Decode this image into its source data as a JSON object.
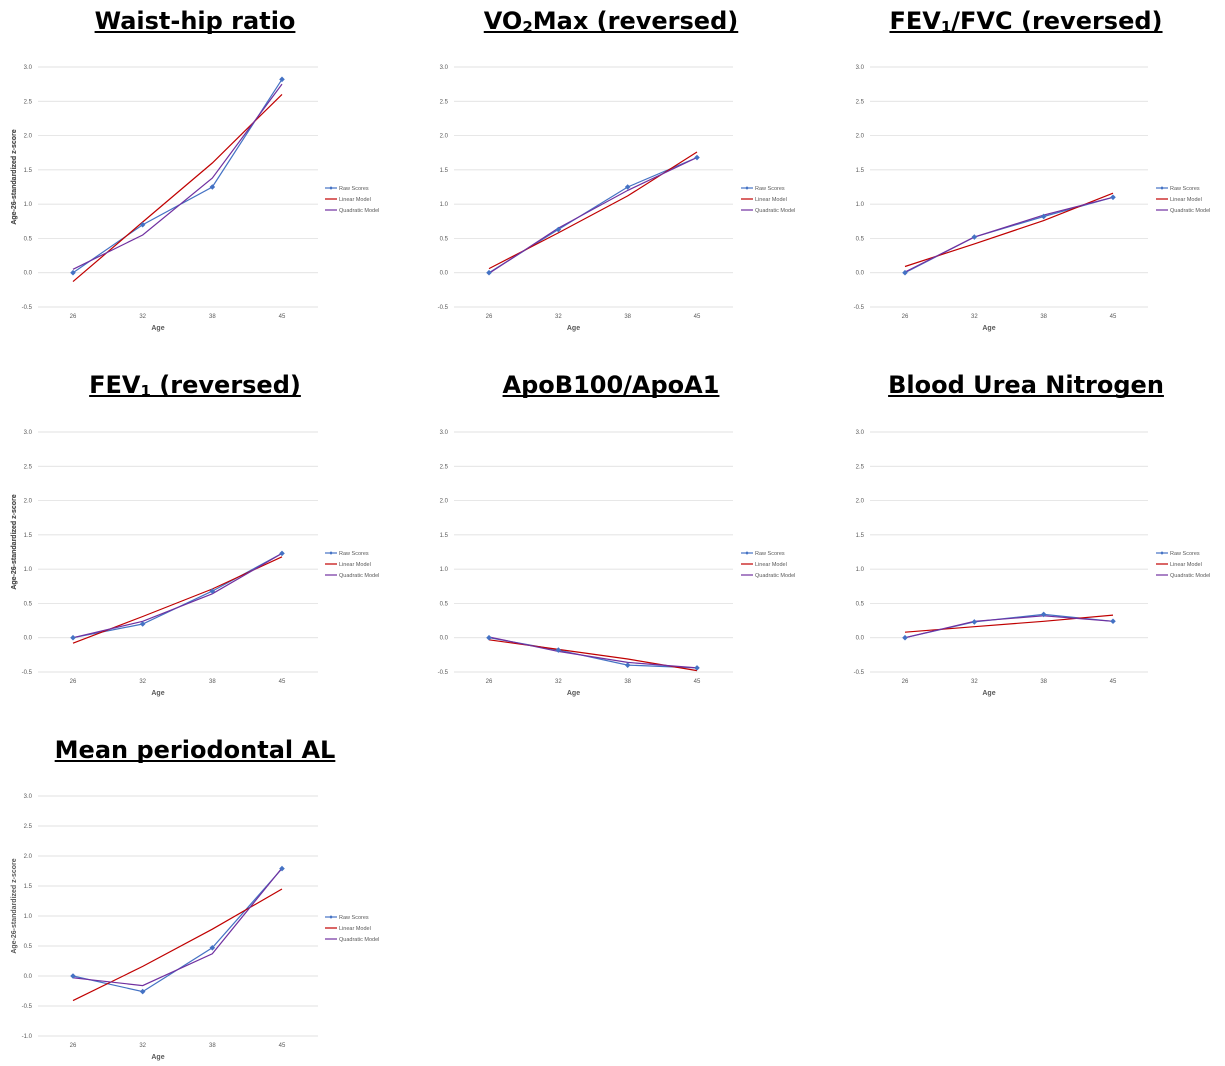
{
  "colors": {
    "raw": "#4472C4",
    "linear": "#C00000",
    "quadratic": "#7030A0",
    "grid": "#D9D9D9",
    "text": "#595959"
  },
  "legend_labels": [
    "Raw Scores",
    "Linear Model",
    "Quadratic Model"
  ],
  "chart_data": [
    {
      "type": "line",
      "title": "Waist-hip ratio",
      "title_parts": [
        {
          "t": "Waist-hip ratio"
        }
      ],
      "xlabel": "Age",
      "ylabel": "Age-26-standardized z-score",
      "categories": [
        "26",
        "32",
        "38",
        "45"
      ],
      "y_ticks": [
        "-0.5",
        "0.0",
        "0.5",
        "1.0",
        "1.5",
        "2.0",
        "2.5",
        "3.0"
      ],
      "ylim": [
        -0.5,
        3.0
      ],
      "series": [
        {
          "name": "Raw Scores",
          "values": [
            0.0,
            0.7,
            1.25,
            2.82
          ]
        },
        {
          "name": "Linear Model",
          "values": [
            -0.13,
            0.74,
            1.6,
            2.6
          ]
        },
        {
          "name": "Quadratic Model",
          "values": [
            0.05,
            0.55,
            1.38,
            2.75
          ]
        }
      ]
    },
    {
      "type": "line",
      "title": "VO2Max (reversed)",
      "title_parts": [
        {
          "t": "VO"
        },
        {
          "t": "2",
          "sub": true
        },
        {
          "t": "Max (reversed)"
        }
      ],
      "xlabel": "Age",
      "ylabel": "Age-26-standardized z-score",
      "categories": [
        "26",
        "32",
        "38",
        "45"
      ],
      "y_ticks": [
        "-0.5",
        "0.0",
        "0.5",
        "1.0",
        "1.5",
        "2.0",
        "2.5",
        "3.0"
      ],
      "ylim": [
        -0.5,
        3.0
      ],
      "series": [
        {
          "name": "Raw Scores",
          "values": [
            0.0,
            0.63,
            1.25,
            1.68
          ]
        },
        {
          "name": "Linear Model",
          "values": [
            0.06,
            0.58,
            1.12,
            1.76
          ]
        },
        {
          "name": "Quadratic Model",
          "values": [
            -0.01,
            0.65,
            1.2,
            1.68
          ]
        }
      ]
    },
    {
      "type": "line",
      "title": "FEV1/FVC (reversed)",
      "title_parts": [
        {
          "t": "FEV"
        },
        {
          "t": "1",
          "sub": true
        },
        {
          "t": "/FVC (reversed)"
        }
      ],
      "xlabel": "Age",
      "ylabel": "Age-26-standardized z-score",
      "categories": [
        "26",
        "32",
        "38",
        "45"
      ],
      "y_ticks": [
        "-0.5",
        "0.0",
        "0.5",
        "1.0",
        "1.5",
        "2.0",
        "2.5",
        "3.0"
      ],
      "ylim": [
        -0.5,
        3.0
      ],
      "series": [
        {
          "name": "Raw Scores",
          "values": [
            0.0,
            0.52,
            0.82,
            1.1
          ]
        },
        {
          "name": "Linear Model",
          "values": [
            0.09,
            0.42,
            0.76,
            1.16
          ]
        },
        {
          "name": "Quadratic Model",
          "values": [
            0.01,
            0.52,
            0.84,
            1.1
          ]
        }
      ]
    },
    {
      "type": "line",
      "title": "FEV1 (reversed)",
      "title_parts": [
        {
          "t": "FEV"
        },
        {
          "t": "1",
          "sub": true
        },
        {
          "t": " (reversed)"
        }
      ],
      "xlabel": "Age",
      "ylabel": "Age-26-standardized z-score",
      "categories": [
        "26",
        "32",
        "38",
        "45"
      ],
      "y_ticks": [
        "-0.5",
        "0.0",
        "0.5",
        "1.0",
        "1.5",
        "2.0",
        "2.5",
        "3.0"
      ],
      "ylim": [
        -0.5,
        3.0
      ],
      "series": [
        {
          "name": "Raw Scores",
          "values": [
            0.0,
            0.2,
            0.68,
            1.23
          ]
        },
        {
          "name": "Linear Model",
          "values": [
            -0.08,
            0.31,
            0.71,
            1.18
          ]
        },
        {
          "name": "Quadratic Model",
          "values": [
            0.0,
            0.24,
            0.64,
            1.23
          ]
        }
      ]
    },
    {
      "type": "line",
      "title": "ApoB100/ApoA1",
      "title_parts": [
        {
          "t": "ApoB100/ApoA1"
        }
      ],
      "xlabel": "Age",
      "ylabel": "Age-26-standardized z-score",
      "categories": [
        "26",
        "32",
        "38",
        "45"
      ],
      "y_ticks": [
        "-0.5",
        "0.0",
        "0.5",
        "1.0",
        "1.5",
        "2.0",
        "2.5",
        "3.0"
      ],
      "ylim": [
        -0.5,
        3.0
      ],
      "series": [
        {
          "name": "Raw Scores",
          "values": [
            0.0,
            -0.18,
            -0.4,
            -0.44
          ]
        },
        {
          "name": "Linear Model",
          "values": [
            -0.03,
            -0.17,
            -0.31,
            -0.48
          ]
        },
        {
          "name": "Quadratic Model",
          "values": [
            0.01,
            -0.2,
            -0.36,
            -0.44
          ]
        }
      ]
    },
    {
      "type": "line",
      "title": "Blood Urea Nitrogen",
      "title_parts": [
        {
          "t": "Blood Urea Nitrogen"
        }
      ],
      "xlabel": "Age",
      "ylabel": "Age-26-standardized z-score",
      "categories": [
        "26",
        "32",
        "38",
        "45"
      ],
      "y_ticks": [
        "-0.5",
        "0.0",
        "0.5",
        "1.0",
        "1.5",
        "2.0",
        "2.5",
        "3.0"
      ],
      "ylim": [
        -0.5,
        3.0
      ],
      "series": [
        {
          "name": "Raw Scores",
          "values": [
            0.0,
            0.23,
            0.34,
            0.24
          ]
        },
        {
          "name": "Linear Model",
          "values": [
            0.08,
            0.16,
            0.24,
            0.33
          ]
        },
        {
          "name": "Quadratic Model",
          "values": [
            0.0,
            0.24,
            0.32,
            0.24
          ]
        }
      ]
    },
    {
      "type": "line",
      "title": "Mean periodontal AL",
      "title_parts": [
        {
          "t": "Mean periodontal AL"
        }
      ],
      "xlabel": "Age",
      "ylabel": "Age-26-standardized z-score",
      "categories": [
        "26",
        "32",
        "38",
        "45"
      ],
      "y_ticks": [
        "-1.0",
        "-0.5",
        "0.0",
        "0.5",
        "1.0",
        "1.5",
        "2.0",
        "2.5",
        "3.0"
      ],
      "ylim": [
        -1.0,
        3.0
      ],
      "series": [
        {
          "name": "Raw Scores",
          "values": [
            0.0,
            -0.26,
            0.47,
            1.79
          ]
        },
        {
          "name": "Linear Model",
          "values": [
            -0.41,
            0.16,
            0.78,
            1.45
          ]
        },
        {
          "name": "Quadratic Model",
          "values": [
            -0.03,
            -0.16,
            0.37,
            1.8
          ]
        }
      ]
    }
  ]
}
